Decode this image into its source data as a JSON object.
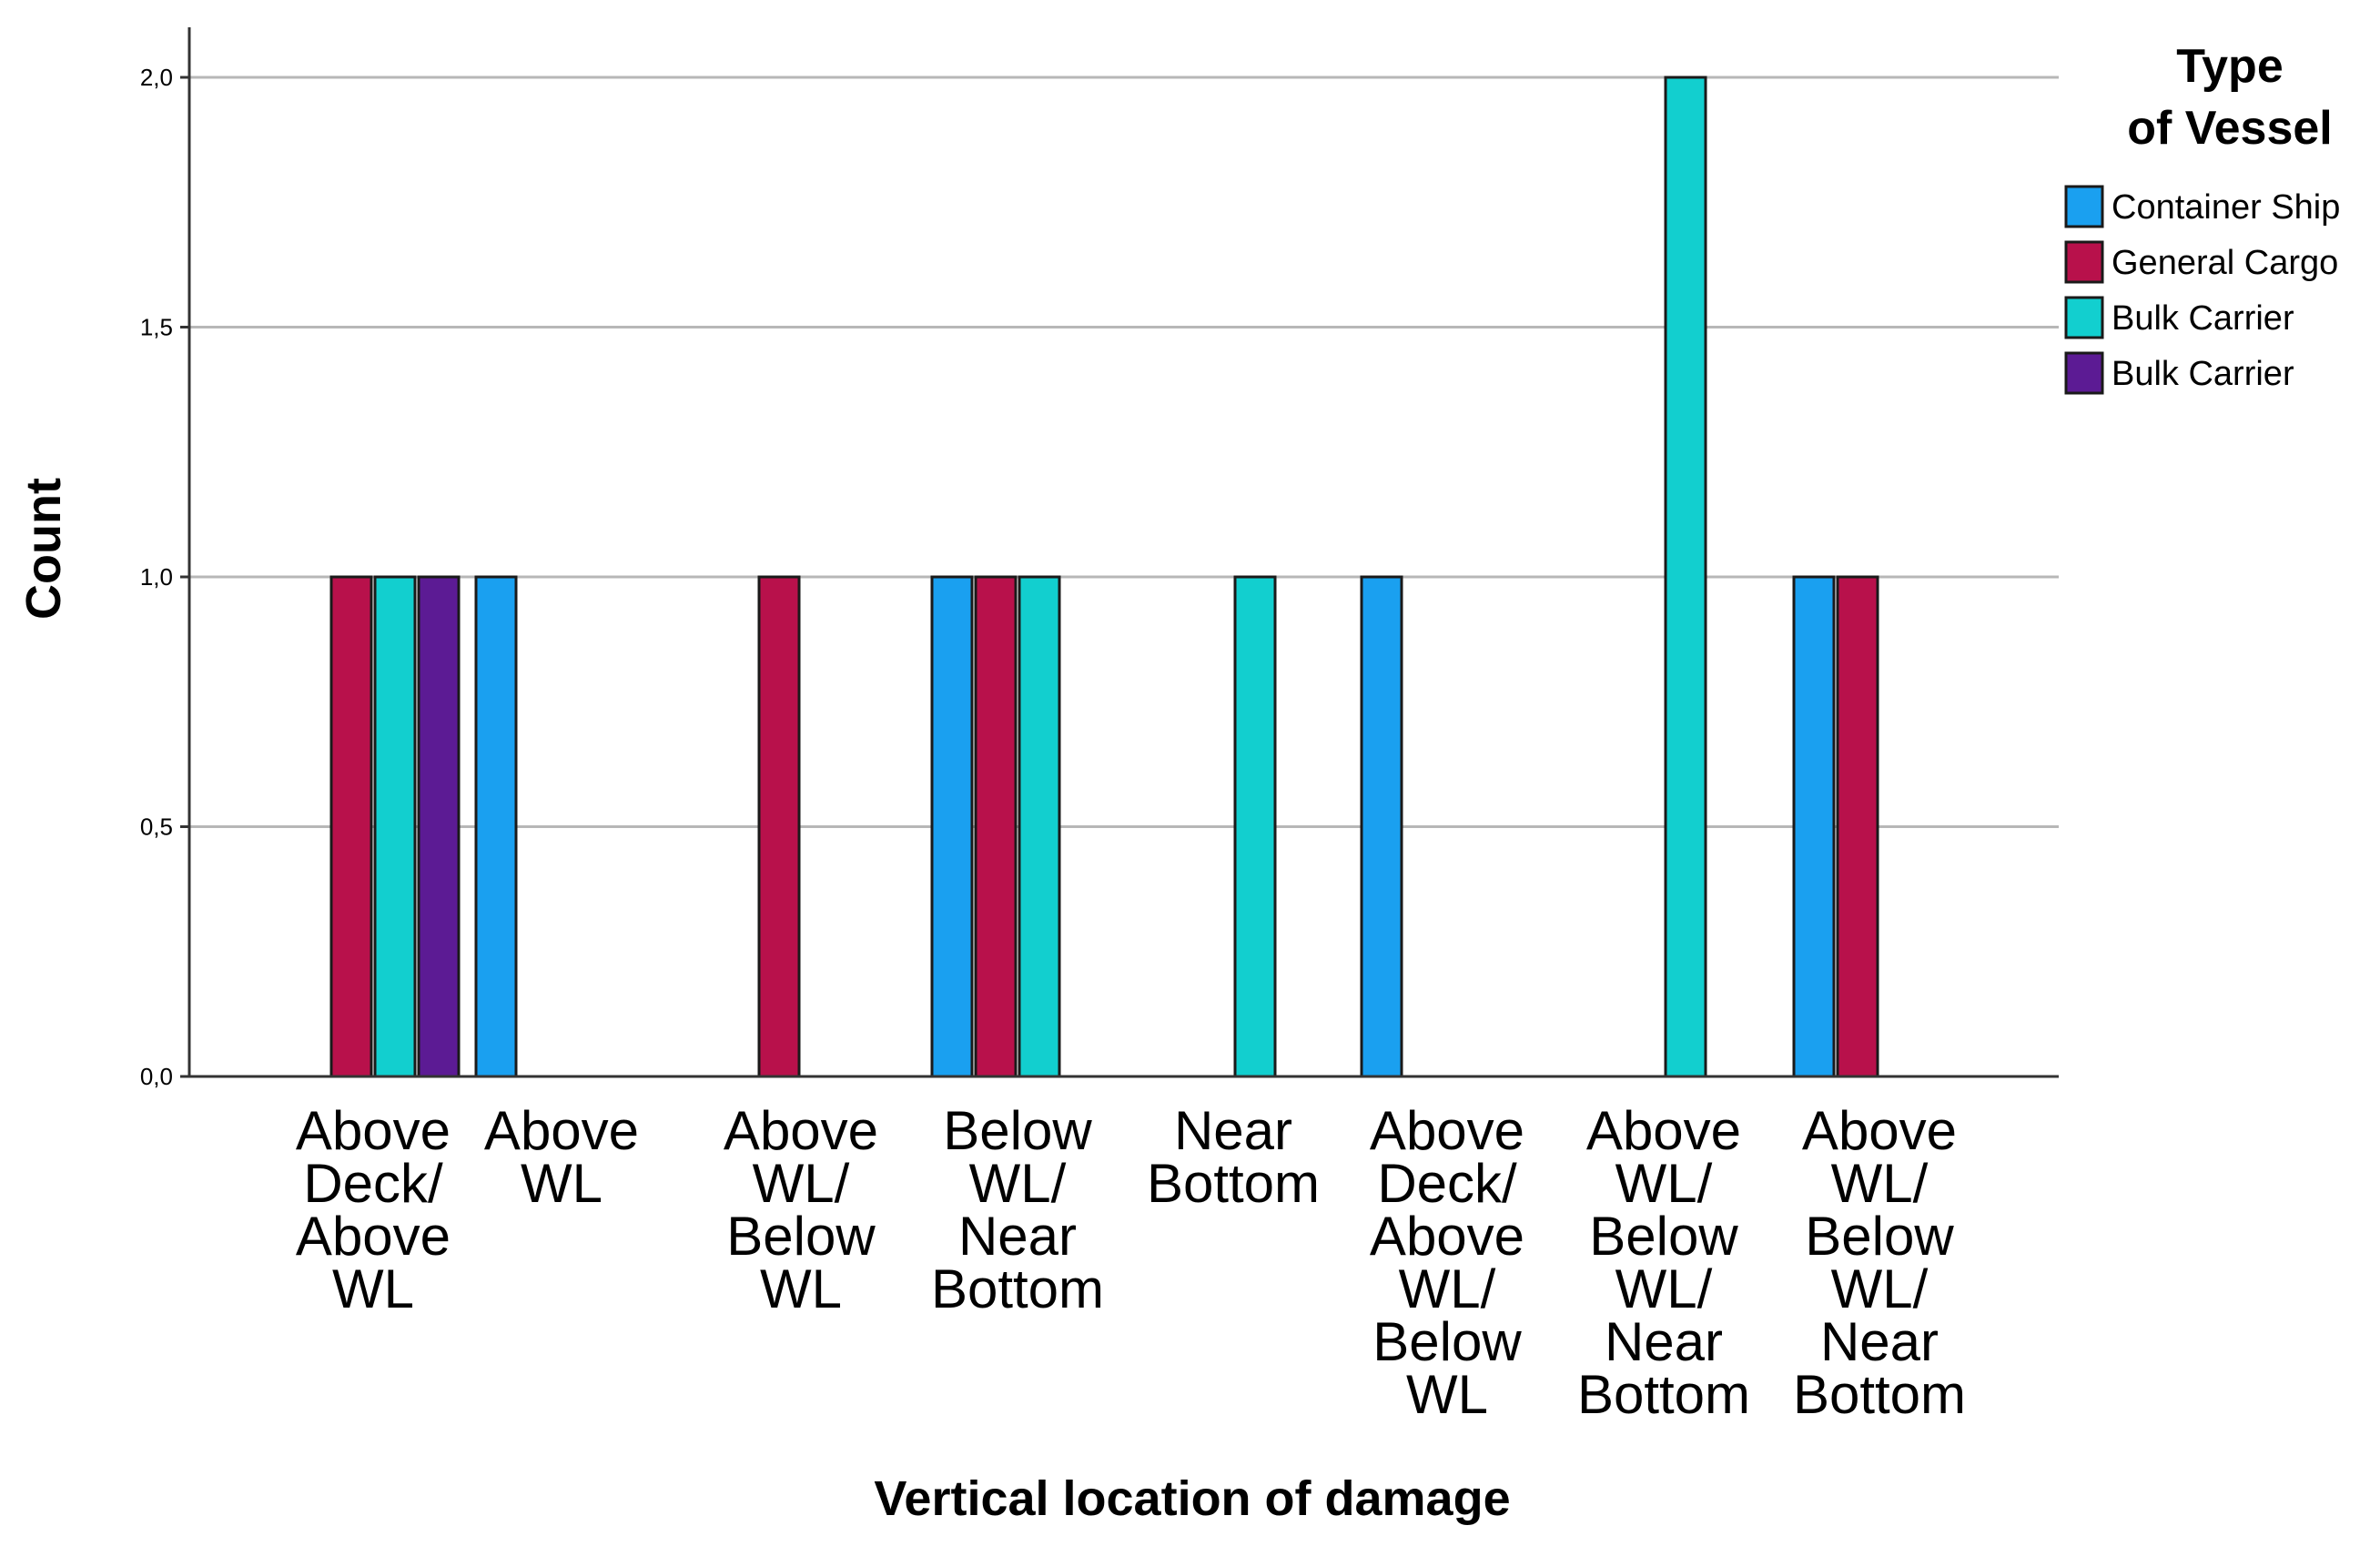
{
  "chart_data": {
    "type": "bar",
    "title": "",
    "xlabel": "Vertical location of damage",
    "ylabel": "Count",
    "ylim": [
      0,
      2
    ],
    "yticks": [
      0,
      0.5,
      1,
      1.5,
      2
    ],
    "ytick_labels": [
      "0,0",
      "0,5",
      "1,0",
      "1,5",
      "2,0"
    ],
    "grid": true,
    "legend_position": "top-right",
    "legend_title": [
      "Type",
      "of Vessel"
    ],
    "categories": [
      [
        "Above",
        "Deck/",
        "Above",
        "WL"
      ],
      [
        "Above",
        "WL"
      ],
      [
        "Above",
        "WL/",
        "Below",
        "WL"
      ],
      [
        "Below",
        "WL/",
        "Near",
        "Bottom"
      ],
      [
        "Near",
        "Bottom"
      ],
      [
        "Above",
        "Deck/",
        "Above",
        "WL/",
        "Below",
        "WL"
      ],
      [
        "Above",
        "WL/",
        "Below",
        "WL/",
        "Near",
        "Bottom"
      ],
      [
        "Above",
        "WL/",
        "Below",
        "WL/",
        "Near",
        "Bottom"
      ]
    ],
    "series": [
      {
        "name": "Container Ship",
        "color": "#1aa0f0",
        "values": [
          0,
          1,
          0,
          1,
          0,
          1,
          0,
          1
        ]
      },
      {
        "name": "General Cargo",
        "color": "#b8114b",
        "values": [
          1,
          0,
          1,
          1,
          0,
          0,
          0,
          1
        ]
      },
      {
        "name": "Bulk Carrier",
        "color": "#12cfcf",
        "values": [
          1,
          0,
          0,
          1,
          1,
          0,
          2,
          0
        ]
      },
      {
        "name": "Bulk Carrier",
        "color": "#5c1b94",
        "values": [
          1,
          0,
          0,
          0,
          0,
          0,
          0,
          0
        ]
      }
    ]
  }
}
